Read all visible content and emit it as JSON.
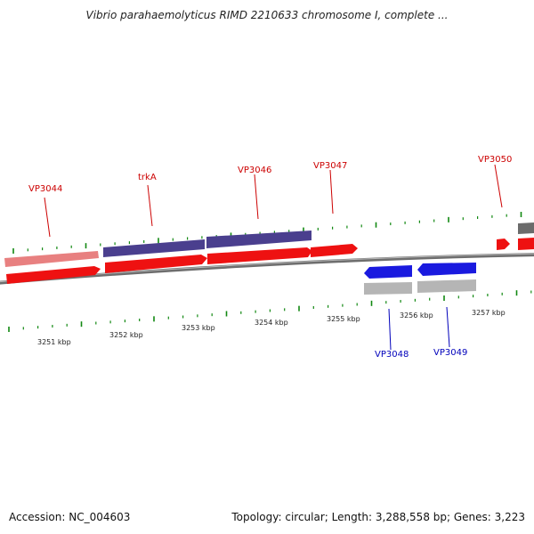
{
  "title": "Vibrio parahaemolyticus RIMD 2210633 chromosome I, complete ...",
  "footer": {
    "accession": "Accession: NC_004603",
    "summary": "Topology: circular; Length: 3,288,558 bp; Genes: 3,223"
  },
  "colors": {
    "forward_cds": "#ee0000",
    "forward_gene_light": "#e88080",
    "forward_gene_dark": "#4a3f8e",
    "reverse_gene": "#1a1adf",
    "reverse_cds": "#b0b0b0",
    "backbone": "#7a7a7a",
    "tick": "#118811",
    "forward_label": "#cc0000",
    "reverse_label": "#0000bb"
  },
  "genes_forward": [
    {
      "name": "VP3044"
    },
    {
      "name": "trkA"
    },
    {
      "name": "VP3046"
    },
    {
      "name": "VP3047"
    },
    {
      "name": "VP3050"
    }
  ],
  "genes_reverse": [
    {
      "name": "VP3048"
    },
    {
      "name": "VP3049"
    }
  ],
  "scale_labels": [
    "3251 kbp",
    "3252 kbp",
    "3253 kbp",
    "3254 kbp",
    "3255 kbp",
    "3256 kbp",
    "3257 kbp"
  ]
}
